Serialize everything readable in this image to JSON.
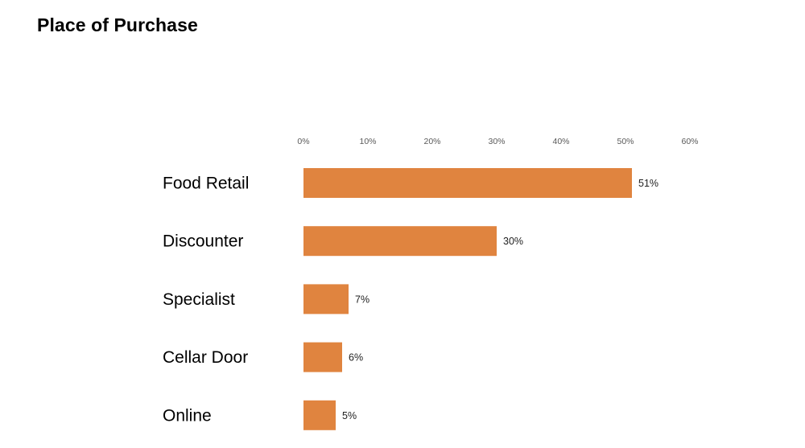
{
  "chart_data": {
    "type": "bar",
    "orientation": "horizontal",
    "title": "Place of Purchase",
    "categories": [
      "Food Retail",
      "Discounter",
      "Specialist",
      "Cellar Door",
      "Online"
    ],
    "values": [
      51,
      30,
      7,
      6,
      5
    ],
    "data_labels": [
      "51%",
      "30%",
      "7%",
      "6%",
      "5%"
    ],
    "x_ticks": [
      0,
      10,
      20,
      30,
      40,
      50,
      60
    ],
    "x_tick_labels": [
      "0%",
      "10%",
      "20%",
      "30%",
      "40%",
      "50%",
      "60%"
    ],
    "xlim": [
      0,
      60
    ],
    "axis_position": "top",
    "grid": false,
    "legend": "none",
    "bar_color": "#E0843F"
  }
}
